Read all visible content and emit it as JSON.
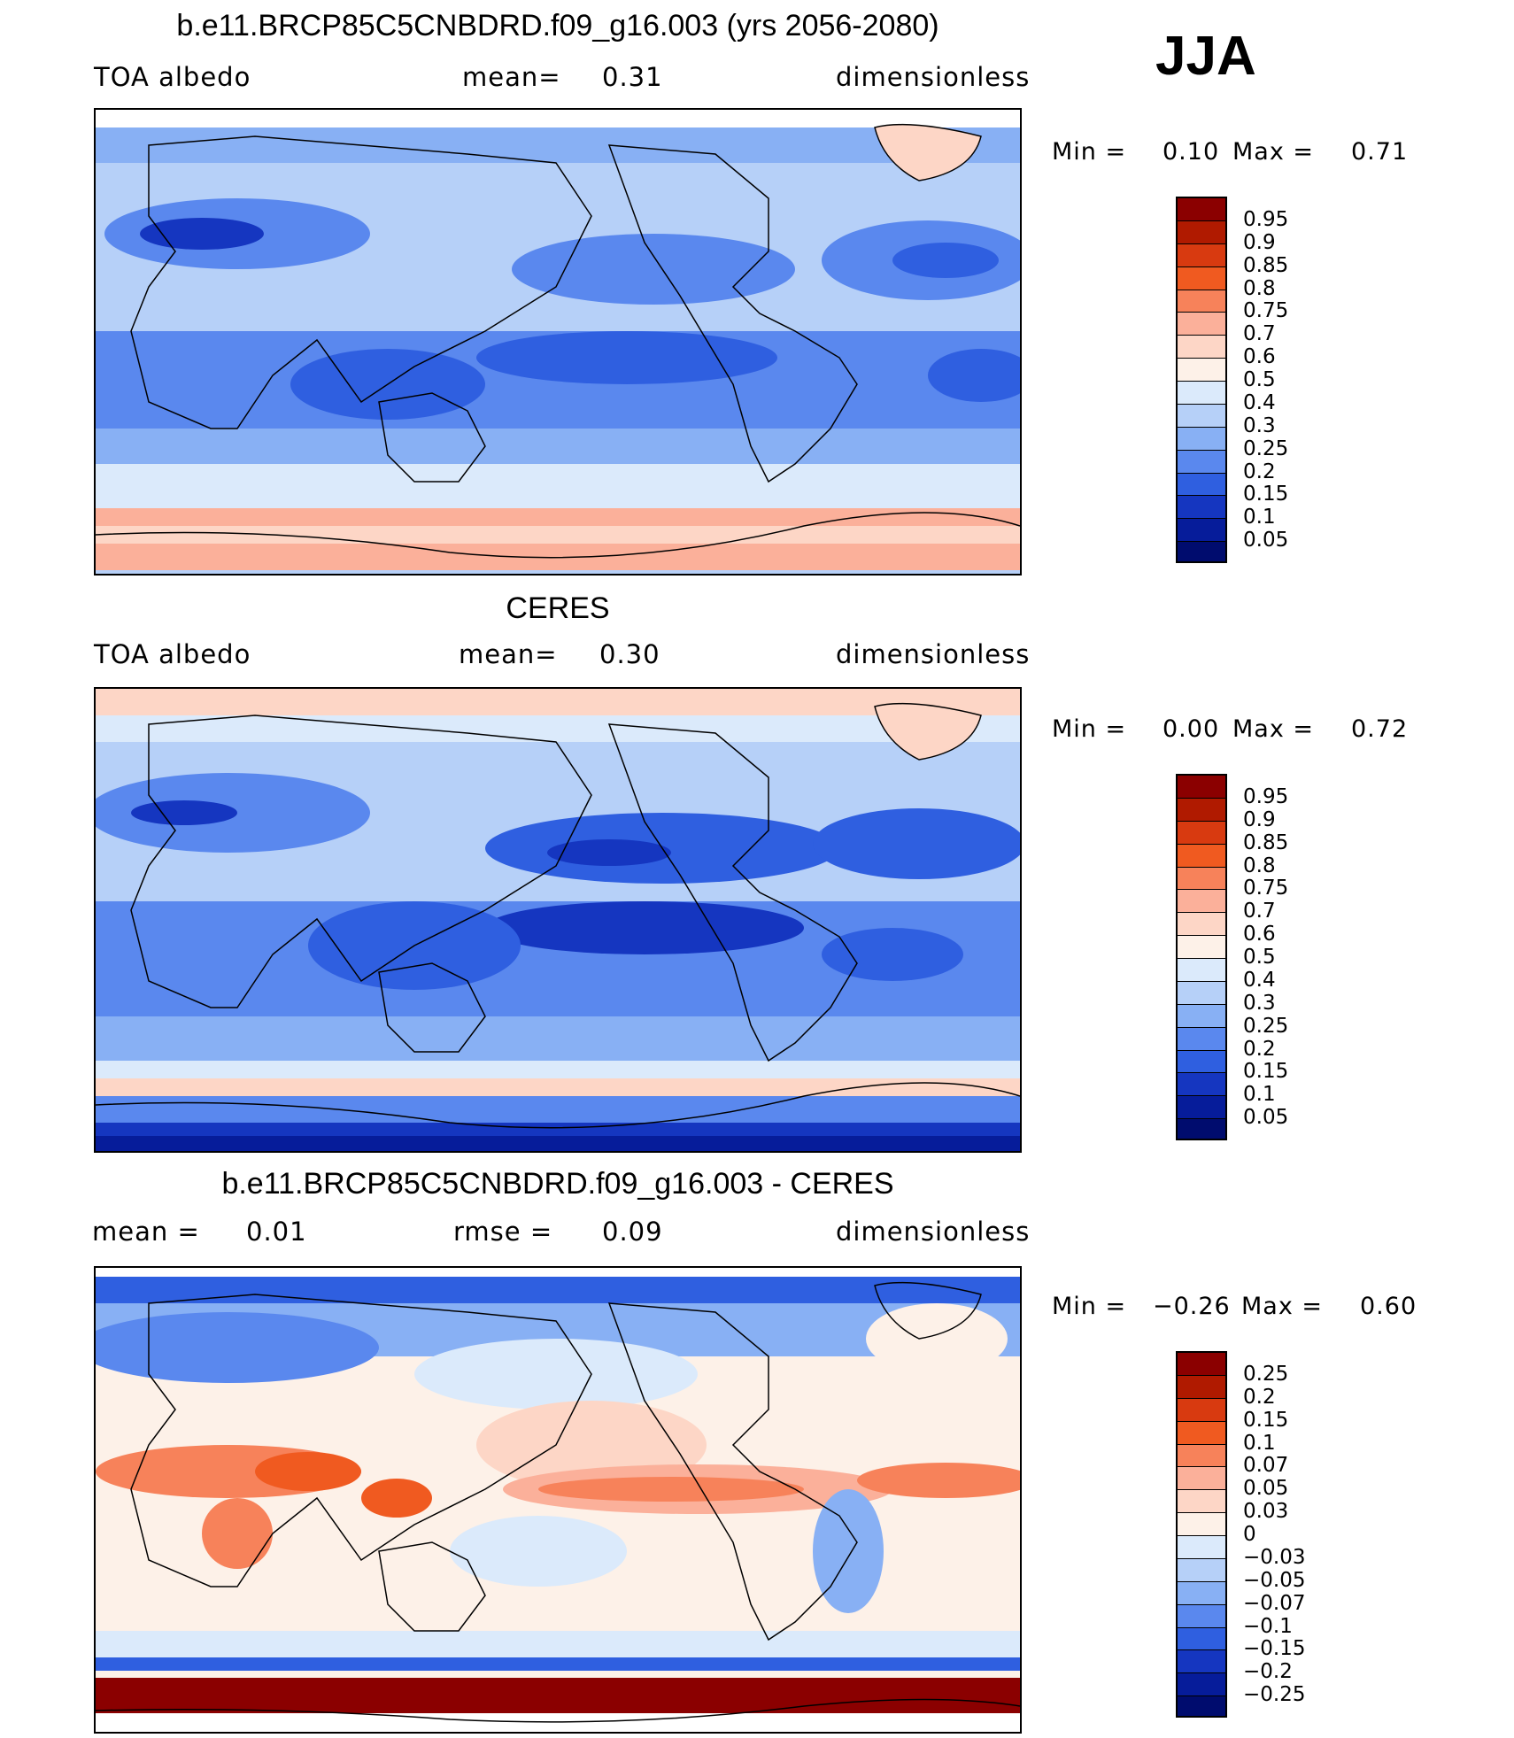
{
  "season": "JJA",
  "panels": [
    {
      "title": "b.e11.BRCP85C5CNBDRD.f09_g16.003 (yrs 2056-2080)",
      "left_label": "TOA  albedo",
      "mid_label": "mean=",
      "mid_value": "0.31",
      "right_label": "dimensionless",
      "min_label": "Min =",
      "min_value": "0.10",
      "max_label": "Max =",
      "max_value": "0.71"
    },
    {
      "title": "CERES",
      "left_label": "TOA  albedo",
      "mid_label": "mean=",
      "mid_value": "0.30",
      "right_label": "dimensionless",
      "min_label": "Min =",
      "min_value": "0.00",
      "max_label": "Max =",
      "max_value": "0.72"
    },
    {
      "title": "b.e11.BRCP85C5CNBDRD.f09_g16.003 - CERES",
      "left_label": "mean =",
      "left_value": "0.01",
      "mid_label": "rmse =",
      "mid_value": "0.09",
      "right_label": "dimensionless",
      "min_label": "Min =",
      "min_value": "−0.26",
      "max_label": "Max =",
      "max_value": "0.60"
    }
  ],
  "colorbars": {
    "absolute": [
      "0.95",
      "0.9",
      "0.85",
      "0.8",
      "0.75",
      "0.7",
      "0.6",
      "0.5",
      "0.4",
      "0.3",
      "0.25",
      "0.2",
      "0.15",
      "0.1",
      "0.05"
    ],
    "difference": [
      "0.25",
      "0.2",
      "0.15",
      "0.1",
      "0.07",
      "0.05",
      "0.03",
      "0",
      "−0.03",
      "−0.05",
      "−0.07",
      "−0.1",
      "−0.15",
      "−0.2",
      "−0.25"
    ],
    "colors": [
      "#8b0000",
      "#b01a00",
      "#d83a10",
      "#f05a20",
      "#f7825a",
      "#fbb09a",
      "#fdd6c6",
      "#fdf1e8",
      "#dbeafb",
      "#b6d0f8",
      "#88b0f4",
      "#5a88ee",
      "#2f5fe0",
      "#1536c0",
      "#061c9a",
      "#000c6e"
    ]
  },
  "chart_data": [
    {
      "type": "heatmap",
      "title": "b.e11.BRCP85C5CNBDRD.f09_g16.003 (yrs 2056-2080)",
      "variable": "TOA albedo",
      "units": "dimensionless",
      "mean": 0.31,
      "min": 0.1,
      "max": 0.71,
      "contour_levels": [
        0.05,
        0.1,
        0.15,
        0.2,
        0.25,
        0.3,
        0.4,
        0.5,
        0.6,
        0.7,
        0.75,
        0.8,
        0.85,
        0.9,
        0.95
      ]
    },
    {
      "type": "heatmap",
      "title": "CERES",
      "variable": "TOA albedo",
      "units": "dimensionless",
      "mean": 0.3,
      "min": 0.0,
      "max": 0.72,
      "contour_levels": [
        0.05,
        0.1,
        0.15,
        0.2,
        0.25,
        0.3,
        0.4,
        0.5,
        0.6,
        0.7,
        0.75,
        0.8,
        0.85,
        0.9,
        0.95
      ]
    },
    {
      "type": "heatmap",
      "title": "b.e11.BRCP85C5CNBDRD.f09_g16.003 - CERES",
      "units": "dimensionless",
      "mean": 0.01,
      "rmse": 0.09,
      "min": -0.26,
      "max": 0.6,
      "contour_levels": [
        -0.25,
        -0.2,
        -0.15,
        -0.1,
        -0.07,
        -0.05,
        -0.03,
        0,
        0.03,
        0.05,
        0.07,
        0.1,
        0.15,
        0.2,
        0.25
      ]
    }
  ]
}
